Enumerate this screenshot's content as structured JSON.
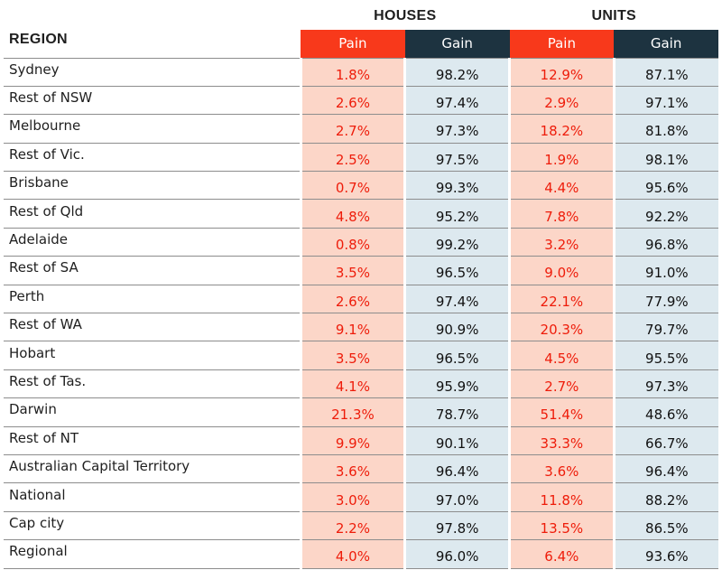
{
  "chart_data": {
    "type": "table",
    "region_header": "REGION",
    "groups": [
      {
        "label": "HOUSES",
        "columns": [
          "Pain",
          "Gain"
        ]
      },
      {
        "label": "UNITS",
        "columns": [
          "Pain",
          "Gain"
        ]
      }
    ],
    "rows": [
      {
        "region": "Sydney",
        "houses_pain": "1.8%",
        "houses_gain": "98.2%",
        "units_pain": "12.9%",
        "units_gain": "87.1%"
      },
      {
        "region": "Rest of NSW",
        "houses_pain": "2.6%",
        "houses_gain": "97.4%",
        "units_pain": "2.9%",
        "units_gain": "97.1%"
      },
      {
        "region": "Melbourne",
        "houses_pain": "2.7%",
        "houses_gain": "97.3%",
        "units_pain": "18.2%",
        "units_gain": "81.8%"
      },
      {
        "region": "Rest of Vic.",
        "houses_pain": "2.5%",
        "houses_gain": "97.5%",
        "units_pain": "1.9%",
        "units_gain": "98.1%"
      },
      {
        "region": "Brisbane",
        "houses_pain": "0.7%",
        "houses_gain": "99.3%",
        "units_pain": "4.4%",
        "units_gain": "95.6%"
      },
      {
        "region": "Rest of Qld",
        "houses_pain": "4.8%",
        "houses_gain": "95.2%",
        "units_pain": "7.8%",
        "units_gain": "92.2%"
      },
      {
        "region": "Adelaide",
        "houses_pain": "0.8%",
        "houses_gain": "99.2%",
        "units_pain": "3.2%",
        "units_gain": "96.8%"
      },
      {
        "region": "Rest of SA",
        "houses_pain": "3.5%",
        "houses_gain": "96.5%",
        "units_pain": "9.0%",
        "units_gain": "91.0%"
      },
      {
        "region": "Perth",
        "houses_pain": "2.6%",
        "houses_gain": "97.4%",
        "units_pain": "22.1%",
        "units_gain": "77.9%"
      },
      {
        "region": "Rest of WA",
        "houses_pain": "9.1%",
        "houses_gain": "90.9%",
        "units_pain": "20.3%",
        "units_gain": "79.7%"
      },
      {
        "region": "Hobart",
        "houses_pain": "3.5%",
        "houses_gain": "96.5%",
        "units_pain": "4.5%",
        "units_gain": "95.5%"
      },
      {
        "region": "Rest of Tas.",
        "houses_pain": "4.1%",
        "houses_gain": "95.9%",
        "units_pain": "2.7%",
        "units_gain": "97.3%"
      },
      {
        "region": "Darwin",
        "houses_pain": "21.3%",
        "houses_gain": "78.7%",
        "units_pain": "51.4%",
        "units_gain": "48.6%"
      },
      {
        "region": "Rest of NT",
        "houses_pain": "9.9%",
        "houses_gain": "90.1%",
        "units_pain": "33.3%",
        "units_gain": "66.7%"
      },
      {
        "region": "Australian Capital Territory",
        "houses_pain": "3.6%",
        "houses_gain": "96.4%",
        "units_pain": "3.6%",
        "units_gain": "96.4%"
      },
      {
        "region": "National",
        "houses_pain": "3.0%",
        "houses_gain": "97.0%",
        "units_pain": "11.8%",
        "units_gain": "88.2%"
      },
      {
        "region": "Cap city",
        "houses_pain": "2.2%",
        "houses_gain": "97.8%",
        "units_pain": "13.5%",
        "units_gain": "86.5%"
      },
      {
        "region": "Regional",
        "houses_pain": "4.0%",
        "houses_gain": "96.0%",
        "units_pain": "6.4%",
        "units_gain": "93.6%"
      }
    ]
  },
  "colors": {
    "pain_header": "#f8391b",
    "gain_header": "#1d3340",
    "pain_cell": "#fcd6c8",
    "gain_cell": "#dde9ef",
    "pain_text": "#ee1c0a"
  }
}
